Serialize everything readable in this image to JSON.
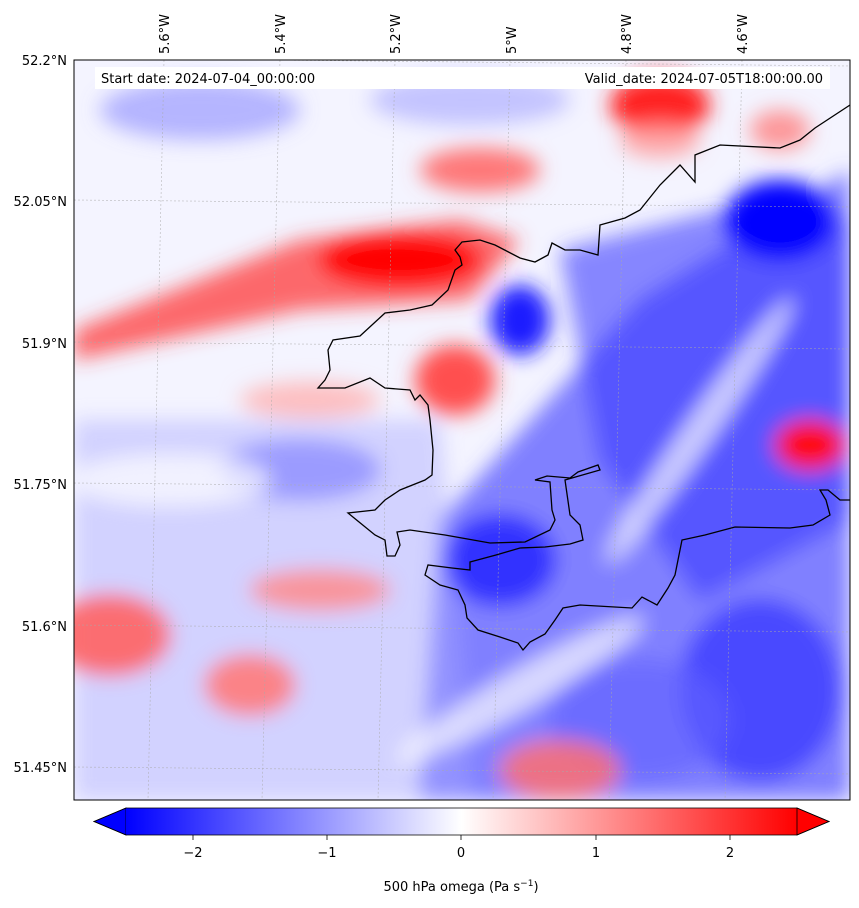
{
  "header": {
    "start_text": "Start date: 2024-07-04_00:00:00",
    "valid_text": "Valid_date: 2024-07-05T18:00:00.00"
  },
  "axes": {
    "lon_labels": [
      "5.6°W",
      "5.4°W",
      "5.2°W",
      "5°W",
      "4.8°W",
      "4.6°W"
    ],
    "lat_labels": [
      "52.2°N",
      "52.05°N",
      "51.9°N",
      "51.75°N",
      "51.6°N",
      "51.45°N"
    ]
  },
  "colorbar": {
    "tick_labels": [
      "−2",
      "−1",
      "0",
      "1",
      "2"
    ],
    "label_main": "500 hPa omega (Pa s",
    "label_sup": "−1",
    "label_end": ")",
    "range": [
      -2.6,
      2.6
    ],
    "colors": {
      "low": "#0000ff",
      "mid": "#ffffff",
      "high": "#ff0000"
    }
  }
}
